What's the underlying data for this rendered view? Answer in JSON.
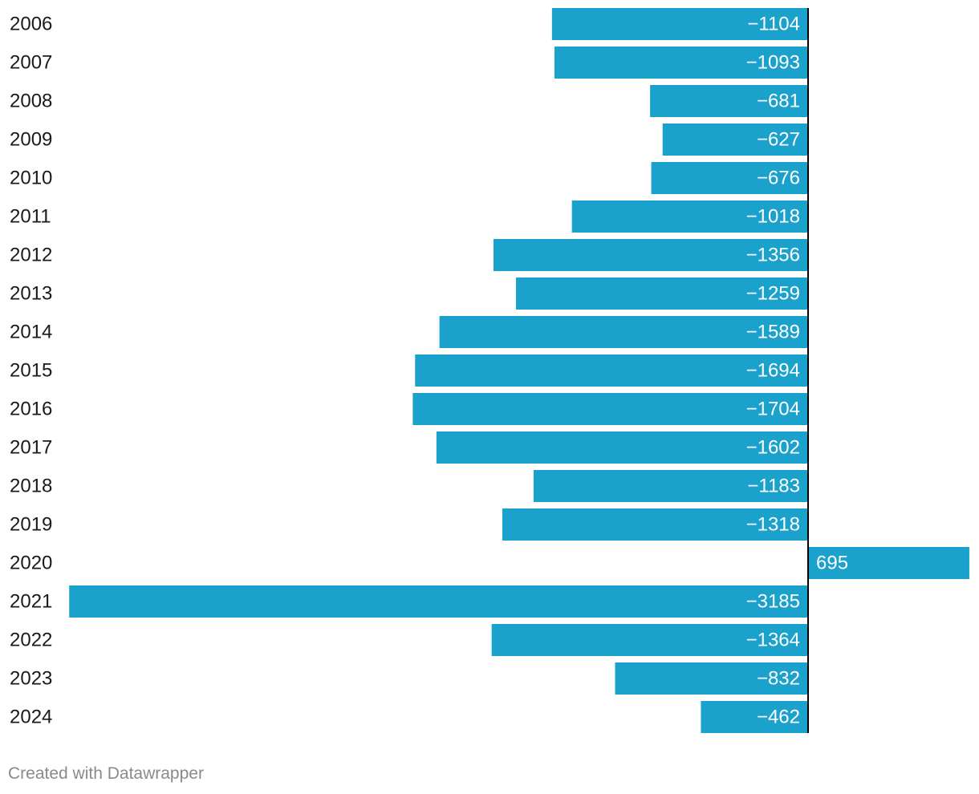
{
  "chart_data": {
    "type": "bar",
    "orientation": "horizontal",
    "categories": [
      "2006",
      "2007",
      "2008",
      "2009",
      "2010",
      "2011",
      "2012",
      "2013",
      "2014",
      "2015",
      "2016",
      "2017",
      "2018",
      "2019",
      "2020",
      "2021",
      "2022",
      "2023",
      "2024"
    ],
    "values": [
      -1104,
      -1093,
      -681,
      -627,
      -676,
      -1018,
      -1356,
      -1259,
      -1589,
      -1694,
      -1704,
      -1602,
      -1183,
      -1318,
      695,
      -3185,
      -1364,
      -832,
      -462
    ],
    "value_labels": [
      "−1104",
      "−1093",
      "−681",
      "−627",
      "−676",
      "−1018",
      "−1356",
      "−1259",
      "−1589",
      "−1694",
      "−1704",
      "−1602",
      "−1183",
      "−1318",
      "695",
      "−3185",
      "−1364",
      "−832",
      "−462"
    ],
    "bar_color": "#1aa1cc",
    "label_color": "#ffffff",
    "category_label_color": "#1a1a1a",
    "baseline_color": "#000000",
    "grid": false,
    "legend": false
  },
  "footer": {
    "credit": "Created with Datawrapper"
  }
}
